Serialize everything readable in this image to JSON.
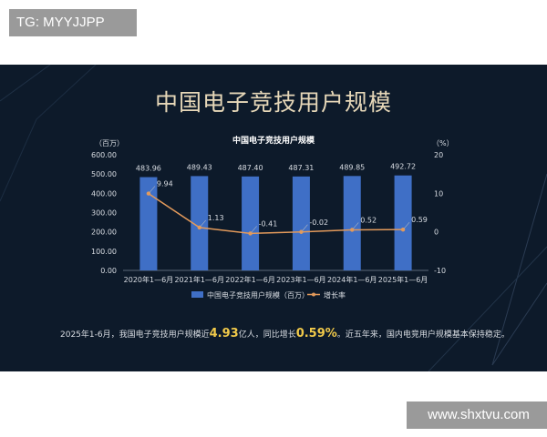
{
  "watermarks": {
    "top_left": "TG: MYYJJPP",
    "bottom_right": "www.shxtvu.com"
  },
  "slide": {
    "title": "中国电子竞技用户规模",
    "caption": {
      "part1": "2025年1-6月，我国电子竞技用户规模近",
      "value1": "4.93",
      "part2": "亿人，同比增长",
      "value2": "0.59%",
      "part3": "。近五年来，国内电竞用户规模基本保持稳定。"
    }
  },
  "chart_data": {
    "type": "bar+line",
    "title": "中国电子竞技用户规模",
    "categories": [
      "2020年1—6月",
      "2021年1—6月",
      "2022年1—6月",
      "2023年1—6月",
      "2024年1—6月",
      "2025年1—6月"
    ],
    "series": [
      {
        "name": "中国电子竞技用户规模（百万）",
        "type": "bar",
        "axis": "left",
        "values": [
          483.96,
          489.43,
          487.4,
          487.31,
          489.85,
          492.72
        ],
        "color": "#3f6fc6"
      },
      {
        "name": "增长率",
        "type": "line",
        "axis": "right",
        "values": [
          9.94,
          1.13,
          -0.41,
          -0.02,
          0.52,
          0.59
        ],
        "color": "#e39a5b"
      }
    ],
    "y_left": {
      "unit": "（百万）",
      "range": [
        0,
        600
      ],
      "ticks": [
        "0.00",
        "100.00",
        "200.00",
        "300.00",
        "400.00",
        "500.00",
        "600.00"
      ]
    },
    "y_right": {
      "unit": "（%）",
      "range": [
        -10,
        20
      ],
      "ticks": [
        "-10",
        "0",
        "10",
        "20"
      ]
    },
    "bar_labels": [
      "483.96",
      "489.43",
      "487.40",
      "487.31",
      "489.85",
      "492.72"
    ],
    "line_labels": [
      "9.94",
      "1.13",
      "-0.41",
      "-0.02",
      "0.52",
      "0.59"
    ],
    "legend_position": "bottom",
    "grid": false,
    "colors": {
      "bar": "#3f6fc6",
      "line": "#e39a5b",
      "text": "#d9dde3",
      "highlight": "#f0c94a"
    }
  }
}
